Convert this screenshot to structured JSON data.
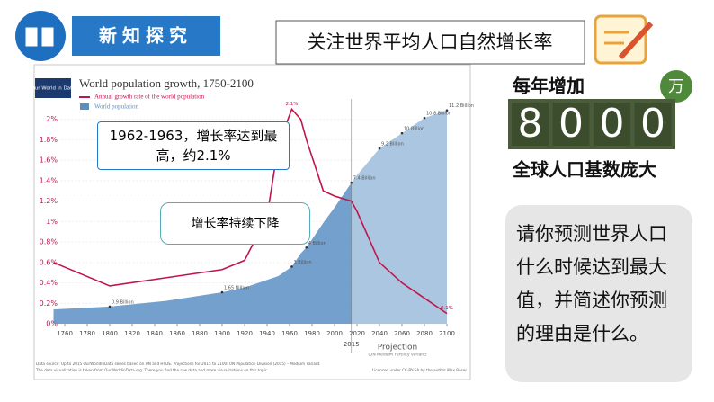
{
  "slide": {
    "section": "新知探究",
    "heading": "关注世界平均人口自然增长率",
    "increase_prefix": "每年增加",
    "increase_unit": "万",
    "increase_digits": [
      "8",
      "0",
      "0",
      "0"
    ],
    "increase_note": "全球人口基数庞大",
    "question": "请你预测世界人口什么时候达到最大值，并简述你预测的理由是什么。",
    "callout_peak": "1962-1963，增长率达到最高，约2.1%",
    "callout_decline": "增长率持续下降"
  },
  "chart_data": {
    "type": "line-area",
    "logo": "Our World in Data",
    "title": "World population growth, 1750-2100",
    "x": [
      1750,
      1800,
      1850,
      1900,
      1920,
      1940,
      1950,
      1962,
      1970,
      1975,
      1990,
      2000,
      2015,
      2020,
      2040,
      2060,
      2080,
      2100
    ],
    "xlim": [
      1750,
      2100
    ],
    "xticks": [
      1760,
      1780,
      1800,
      1820,
      1840,
      1860,
      1880,
      1900,
      1920,
      1940,
      1960,
      1980,
      2000,
      2020,
      2040,
      2060,
      2080,
      2100
    ],
    "ylim": [
      0,
      2.2
    ],
    "yticks": [
      {
        "value": 0,
        "label": "0%"
      },
      {
        "value": 0.2,
        "label": "0.2%"
      },
      {
        "value": 0.4,
        "label": "0.4%"
      },
      {
        "value": 0.6,
        "label": "0.6%"
      },
      {
        "value": 0.8,
        "label": "0.8%"
      },
      {
        "value": 1,
        "label": "1%"
      },
      {
        "value": 1.2,
        "label": "1.2%"
      },
      {
        "value": 1.4,
        "label": "1.4%"
      },
      {
        "value": 1.6,
        "label": "1.6%"
      },
      {
        "value": 1.8,
        "label": "1.8%"
      },
      {
        "value": 2,
        "label": "2%"
      }
    ],
    "y2lim": [
      0,
      11.8
    ],
    "projection_start": 2015,
    "projection_label": "Projection",
    "projection_note": "(UN Medium Fertility Variant)",
    "series": [
      {
        "name": "Annual growth rate of the world population",
        "color": "#c0154a",
        "values": [
          0.6,
          0.37,
          0.45,
          0.53,
          0.62,
          1.05,
          1.75,
          2.1,
          2.0,
          1.8,
          1.3,
          1.25,
          1.2,
          1.1,
          0.6,
          0.4,
          0.25,
          0.1
        ],
        "value_labels": [
          null,
          null,
          null,
          null,
          null,
          null,
          null,
          "2.1%",
          null,
          null,
          null,
          null,
          null,
          null,
          null,
          null,
          null,
          "0.1%"
        ]
      },
      {
        "name": "World population",
        "color": "#5b8fc4",
        "axis": "y2",
        "values": [
          0.75,
          0.9,
          1.2,
          1.65,
          1.9,
          2.3,
          2.5,
          3,
          3.7,
          4,
          5.3,
          6.1,
          7.4,
          7.8,
          9.2,
          10,
          10.8,
          11.2
        ],
        "value_labels": [
          null,
          "0.9 Billion",
          null,
          "1.65 Billion",
          null,
          null,
          null,
          "3 Billion",
          null,
          "4 Billion",
          null,
          null,
          "7.4 Billion",
          null,
          "9.2 Billion",
          "10 Billion",
          "10.8 Billion",
          "11.2 Billion"
        ]
      }
    ],
    "footnotes": [
      "Data source: Up to 2015 OurWorldInData series based on UN and HYDE. Projections for 2015 to 2100: UN Population Division (2015) – Medium Variant.",
      "The data visualization is taken from OurWorldinData.org. There you find the raw data and more visualizations on this topic."
    ],
    "license": "Licensed under CC-BY-SA by the author Max Roser."
  }
}
